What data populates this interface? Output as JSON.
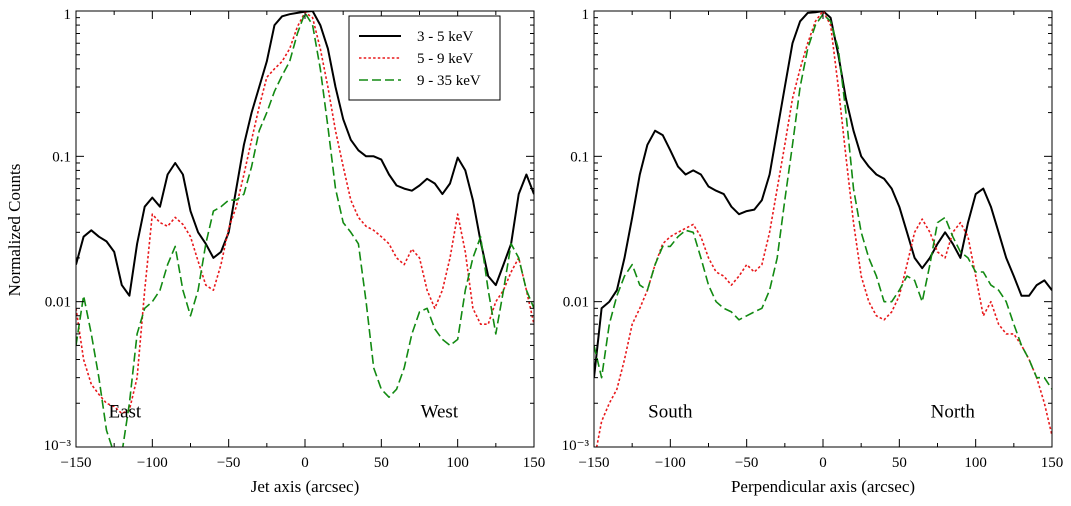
{
  "chart_data": [
    {
      "type": "line",
      "panel": "left",
      "xlabel": "Jet axis (arcsec)",
      "ylabel": "Normalized Counts",
      "xlim": [
        -150,
        150
      ],
      "ylim": [
        0.001,
        1
      ],
      "yscale": "log",
      "x_ticks": [
        "−150",
        "−100",
        "−50",
        "0",
        "50",
        "100",
        "150"
      ],
      "y_ticks": [
        "10⁻³",
        "0.01",
        "0.1",
        "1"
      ],
      "annotations": [
        "East",
        "West"
      ],
      "legend": {
        "placement": "top-right",
        "entries": [
          "3 - 5 keV",
          "5 - 9 keV",
          "9 - 35 keV"
        ]
      },
      "series": [
        {
          "name": "3 - 5 keV",
          "color": "#000000",
          "dash": "solid",
          "x": [
            -150,
            -145,
            -140,
            -135,
            -130,
            -125,
            -120,
            -115,
            -110,
            -105,
            -100,
            -95,
            -90,
            -85,
            -80,
            -75,
            -70,
            -65,
            -60,
            -55,
            -50,
            -45,
            -40,
            -35,
            -30,
            -25,
            -20,
            -15,
            -10,
            -5,
            0,
            5,
            10,
            15,
            20,
            25,
            30,
            35,
            40,
            45,
            50,
            55,
            60,
            65,
            70,
            75,
            80,
            85,
            90,
            95,
            100,
            105,
            110,
            115,
            120,
            125,
            130,
            135,
            140,
            145,
            150
          ],
          "y": [
            0.018,
            0.028,
            0.031,
            0.028,
            0.026,
            0.022,
            0.013,
            0.011,
            0.025,
            0.045,
            0.052,
            0.045,
            0.075,
            0.09,
            0.075,
            0.042,
            0.03,
            0.025,
            0.02,
            0.022,
            0.03,
            0.06,
            0.12,
            0.2,
            0.3,
            0.45,
            0.8,
            0.92,
            0.95,
            0.97,
            0.99,
            1.0,
            0.8,
            0.55,
            0.3,
            0.18,
            0.13,
            0.11,
            0.1,
            0.1,
            0.095,
            0.075,
            0.063,
            0.06,
            0.058,
            0.063,
            0.07,
            0.065,
            0.055,
            0.065,
            0.098,
            0.08,
            0.05,
            0.026,
            0.015,
            0.013,
            0.018,
            0.025,
            0.055,
            0.075,
            0.055
          ]
        },
        {
          "name": "5 - 9 keV",
          "color": "#e8191c",
          "dash": "dotted",
          "x": [
            -150,
            -145,
            -140,
            -135,
            -130,
            -125,
            -120,
            -115,
            -110,
            -105,
            -100,
            -95,
            -90,
            -85,
            -80,
            -75,
            -70,
            -65,
            -60,
            -55,
            -50,
            -45,
            -40,
            -35,
            -30,
            -25,
            -20,
            -15,
            -10,
            -5,
            0,
            5,
            10,
            15,
            20,
            25,
            30,
            35,
            40,
            45,
            50,
            55,
            60,
            65,
            70,
            75,
            80,
            85,
            90,
            95,
            100,
            105,
            110,
            115,
            120,
            125,
            130,
            135,
            140,
            145,
            150
          ],
          "y": [
            0.009,
            0.004,
            0.0027,
            0.0023,
            0.002,
            0.0019,
            0.0017,
            0.0018,
            0.003,
            0.012,
            0.04,
            0.035,
            0.033,
            0.038,
            0.034,
            0.028,
            0.019,
            0.013,
            0.012,
            0.018,
            0.032,
            0.045,
            0.075,
            0.13,
            0.22,
            0.35,
            0.4,
            0.45,
            0.55,
            0.78,
            0.98,
            0.9,
            0.55,
            0.3,
            0.15,
            0.085,
            0.05,
            0.038,
            0.033,
            0.031,
            0.028,
            0.025,
            0.02,
            0.018,
            0.023,
            0.02,
            0.012,
            0.009,
            0.012,
            0.02,
            0.04,
            0.022,
            0.009,
            0.007,
            0.007,
            0.01,
            0.012,
            0.016,
            0.02,
            0.012,
            0.007
          ]
        },
        {
          "name": "9 - 35 keV",
          "color": "#128a12",
          "dash": "dashed",
          "x": [
            -150,
            -145,
            -140,
            -135,
            -130,
            -125,
            -120,
            -115,
            -110,
            -105,
            -100,
            -95,
            -90,
            -85,
            -80,
            -75,
            -70,
            -65,
            -60,
            -55,
            -50,
            -45,
            -40,
            -35,
            -30,
            -25,
            -20,
            -15,
            -10,
            -5,
            0,
            5,
            10,
            15,
            20,
            25,
            30,
            35,
            40,
            45,
            50,
            55,
            60,
            65,
            70,
            75,
            80,
            85,
            90,
            95,
            100,
            105,
            110,
            115,
            120,
            125,
            130,
            135,
            140,
            145,
            150
          ],
          "y": [
            0.005,
            0.011,
            0.006,
            0.003,
            0.0013,
            0.0009,
            0.0009,
            0.002,
            0.006,
            0.009,
            0.01,
            0.012,
            0.018,
            0.024,
            0.012,
            0.008,
            0.012,
            0.025,
            0.042,
            0.045,
            0.05,
            0.05,
            0.055,
            0.085,
            0.15,
            0.2,
            0.28,
            0.36,
            0.45,
            0.7,
            0.97,
            0.8,
            0.4,
            0.16,
            0.06,
            0.035,
            0.03,
            0.025,
            0.01,
            0.0035,
            0.0025,
            0.0022,
            0.0025,
            0.0035,
            0.006,
            0.0085,
            0.009,
            0.0065,
            0.0055,
            0.005,
            0.0055,
            0.012,
            0.02,
            0.028,
            0.012,
            0.006,
            0.012,
            0.025,
            0.02,
            0.012,
            0.009
          ]
        }
      ]
    },
    {
      "type": "line",
      "panel": "right",
      "xlabel": "Perpendicular axis (arcsec)",
      "ylabel": "",
      "xlim": [
        -150,
        150
      ],
      "ylim": [
        0.001,
        1
      ],
      "yscale": "log",
      "x_ticks": [
        "−150",
        "−100",
        "−50",
        "0",
        "50",
        "100",
        "150"
      ],
      "y_ticks": [
        "10⁻³",
        "0.01",
        "0.1",
        "1"
      ],
      "annotations": [
        "South",
        "North"
      ],
      "series": [
        {
          "name": "3 - 5 keV",
          "color": "#000000",
          "dash": "solid",
          "x": [
            -150,
            -145,
            -140,
            -135,
            -130,
            -125,
            -120,
            -115,
            -110,
            -105,
            -100,
            -95,
            -90,
            -85,
            -80,
            -75,
            -70,
            -65,
            -60,
            -55,
            -50,
            -45,
            -40,
            -35,
            -30,
            -25,
            -20,
            -15,
            -10,
            -5,
            0,
            5,
            10,
            15,
            20,
            25,
            30,
            35,
            40,
            45,
            50,
            55,
            60,
            65,
            70,
            75,
            80,
            85,
            90,
            95,
            100,
            105,
            110,
            115,
            120,
            125,
            130,
            135,
            140,
            145,
            150
          ],
          "y": [
            0.003,
            0.009,
            0.01,
            0.012,
            0.02,
            0.038,
            0.075,
            0.12,
            0.15,
            0.14,
            0.11,
            0.085,
            0.075,
            0.08,
            0.075,
            0.062,
            0.058,
            0.055,
            0.045,
            0.04,
            0.042,
            0.043,
            0.05,
            0.075,
            0.15,
            0.3,
            0.6,
            0.85,
            0.97,
            0.98,
            1.0,
            0.9,
            0.5,
            0.25,
            0.15,
            0.1,
            0.085,
            0.075,
            0.07,
            0.06,
            0.045,
            0.03,
            0.02,
            0.017,
            0.02,
            0.025,
            0.03,
            0.025,
            0.02,
            0.035,
            0.055,
            0.06,
            0.045,
            0.03,
            0.02,
            0.015,
            0.011,
            0.011,
            0.013,
            0.014,
            0.012
          ]
        },
        {
          "name": "5 - 9 keV",
          "color": "#e8191c",
          "dash": "dotted",
          "x": [
            -150,
            -145,
            -140,
            -135,
            -130,
            -125,
            -120,
            -115,
            -110,
            -105,
            -100,
            -95,
            -90,
            -85,
            -80,
            -75,
            -70,
            -65,
            -60,
            -55,
            -50,
            -45,
            -40,
            -35,
            -30,
            -25,
            -20,
            -15,
            -10,
            -5,
            0,
            5,
            10,
            15,
            20,
            25,
            30,
            35,
            40,
            45,
            50,
            55,
            60,
            65,
            70,
            75,
            80,
            85,
            90,
            95,
            100,
            105,
            110,
            115,
            120,
            125,
            130,
            135,
            140,
            145,
            150
          ],
          "y": [
            0.0008,
            0.0015,
            0.002,
            0.0025,
            0.004,
            0.007,
            0.009,
            0.012,
            0.018,
            0.025,
            0.028,
            0.03,
            0.032,
            0.034,
            0.028,
            0.02,
            0.016,
            0.015,
            0.013,
            0.015,
            0.018,
            0.016,
            0.018,
            0.03,
            0.06,
            0.12,
            0.25,
            0.4,
            0.6,
            0.85,
            1.0,
            0.8,
            0.3,
            0.1,
            0.035,
            0.015,
            0.01,
            0.008,
            0.0075,
            0.0085,
            0.011,
            0.018,
            0.03,
            0.037,
            0.03,
            0.022,
            0.02,
            0.03,
            0.035,
            0.028,
            0.015,
            0.008,
            0.01,
            0.007,
            0.006,
            0.006,
            0.005,
            0.004,
            0.003,
            0.002,
            0.0012
          ]
        },
        {
          "name": "9 - 35 keV",
          "color": "#128a12",
          "dash": "dashed",
          "x": [
            -150,
            -145,
            -140,
            -135,
            -130,
            -125,
            -120,
            -115,
            -110,
            -105,
            -100,
            -95,
            -90,
            -85,
            -80,
            -75,
            -70,
            -65,
            -60,
            -55,
            -50,
            -45,
            -40,
            -35,
            -30,
            -25,
            -20,
            -15,
            -10,
            -5,
            0,
            5,
            10,
            15,
            20,
            25,
            30,
            35,
            40,
            45,
            50,
            55,
            60,
            65,
            70,
            75,
            80,
            85,
            90,
            95,
            100,
            105,
            110,
            115,
            120,
            125,
            130,
            135,
            140,
            145,
            150
          ],
          "y": [
            0.005,
            0.003,
            0.007,
            0.011,
            0.015,
            0.018,
            0.013,
            0.012,
            0.018,
            0.024,
            0.024,
            0.028,
            0.031,
            0.03,
            0.02,
            0.013,
            0.01,
            0.009,
            0.0085,
            0.0075,
            0.008,
            0.0085,
            0.009,
            0.012,
            0.02,
            0.05,
            0.12,
            0.3,
            0.55,
            0.8,
            0.95,
            0.85,
            0.55,
            0.2,
            0.06,
            0.03,
            0.02,
            0.015,
            0.01,
            0.01,
            0.012,
            0.015,
            0.014,
            0.01,
            0.018,
            0.035,
            0.038,
            0.028,
            0.022,
            0.02,
            0.016,
            0.016,
            0.013,
            0.012,
            0.01,
            0.007,
            0.005,
            0.004,
            0.003,
            0.003,
            0.0025
          ]
        }
      ]
    }
  ]
}
